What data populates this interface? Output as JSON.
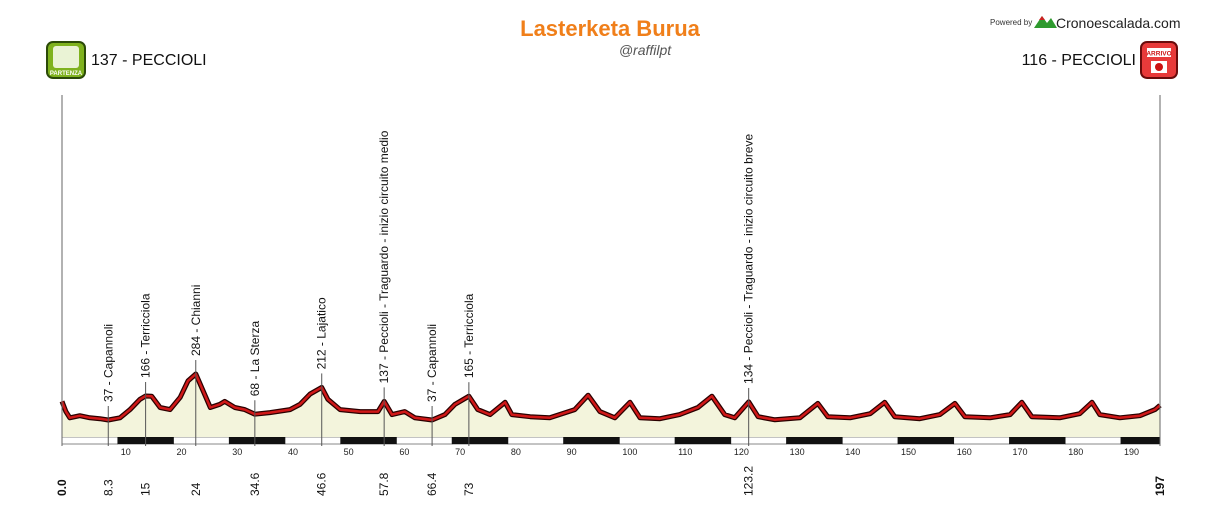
{
  "chart_data": {
    "type": "area",
    "title": "Lasterketa Burua",
    "subtitle": "@raffilpt",
    "powered_by": "Powered by",
    "brand": "Cronoescalada.com",
    "start": {
      "badge": "PARTENZA",
      "label": "137 - PECCIOLI"
    },
    "finish": {
      "badge": "ARRIVO",
      "label": "116 - PECCIOLI"
    },
    "color": "#d01818",
    "xlim": [
      0,
      197
    ],
    "xticks": [
      10,
      20,
      30,
      40,
      50,
      60,
      70,
      80,
      90,
      100,
      110,
      120,
      130,
      140,
      150,
      160,
      170,
      180,
      190
    ],
    "end_labels": [
      {
        "value": 0,
        "label": "0.0"
      },
      197
    ],
    "markers": [
      {
        "km": 8.3,
        "label": "37 - Capannoli"
      },
      {
        "km": 15,
        "label": "166 - Terricciola"
      },
      {
        "km": 24,
        "label": "284 - Chianni"
      },
      {
        "km": 34.6,
        "label": "68 - La Sterza"
      },
      {
        "km": 46.6,
        "label": "212 - Lajatico"
      },
      {
        "km": 57.8,
        "label": "137 - Peccioli - Traguardo - inizio circuito medio"
      },
      {
        "km": 66.4,
        "label": "37 - Capannoli"
      },
      {
        "km": 73,
        "label": "165 - Terricciola"
      },
      {
        "km": 123.2,
        "label": "134 - Peccioli - Traguardo - inizio circuito breve"
      }
    ],
    "x": [
      0,
      0.7,
      1.4,
      3.2,
      5.0,
      6.8,
      8.3,
      10.4,
      12.2,
      14.0,
      15.0,
      16.1,
      17.6,
      19.4,
      21.2,
      22.6,
      24.0,
      24.8,
      26.6,
      28.3,
      29.2,
      31.0,
      32.8,
      34.6,
      37.3,
      40.9,
      42.7,
      44.5,
      46.6,
      47.7,
      49.9,
      53.5,
      56.7,
      57.8,
      59.2,
      61.5,
      63.3,
      66.4,
      68.7,
      70.5,
      73.0,
      74.6,
      76.8,
      79.5,
      80.7,
      84.0,
      87.5,
      92.0,
      94.4,
      96.5,
      99.2,
      101.9,
      103.7,
      107.3,
      110.8,
      114.1,
      116.6,
      118.9,
      120.7,
      123.2,
      124.9,
      127.9,
      132.4,
      135.6,
      137.4,
      141.4,
      145.0,
      147.6,
      149.4,
      153.9,
      157.5,
      160.2,
      162.0,
      166.5,
      170.1,
      172.2,
      174.0,
      179.0,
      182.6,
      184.8,
      186.2,
      189.8,
      193.4,
      196.1,
      197
    ],
    "values": [
      137,
      82,
      49,
      60,
      49,
      44,
      37,
      49,
      93,
      148,
      166,
      165,
      104,
      93,
      159,
      247,
      284,
      230,
      104,
      121,
      137,
      104,
      93,
      68,
      77,
      93,
      121,
      176,
      212,
      148,
      93,
      82,
      82,
      137,
      66,
      82,
      49,
      37,
      66,
      121,
      165,
      93,
      66,
      132,
      66,
      55,
      49,
      93,
      170,
      82,
      49,
      132,
      49,
      44,
      66,
      104,
      165,
      66,
      49,
      134,
      55,
      38,
      49,
      126,
      55,
      49,
      71,
      132,
      55,
      44,
      66,
      126,
      55,
      49,
      66,
      132,
      55,
      49,
      71,
      132,
      66,
      49,
      60,
      93,
      116
    ]
  }
}
